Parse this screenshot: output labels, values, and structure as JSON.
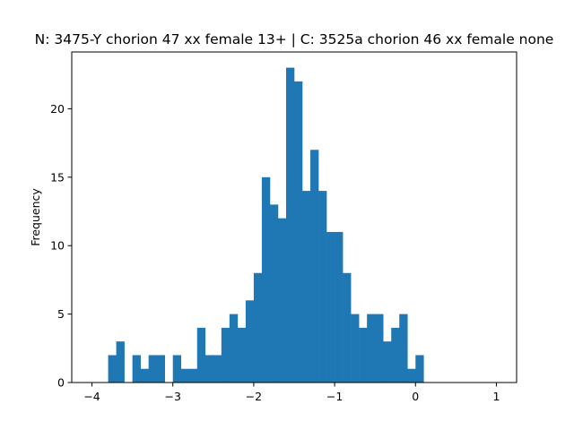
{
  "chart_data": {
    "type": "bar",
    "title": "N: 3475-Y chorion 47 xx female 13+ | C: 3525a chorion 46 xx female none",
    "xlabel": "",
    "ylabel": "Frequency",
    "xlim": [
      -4.25,
      1.25
    ],
    "ylim": [
      0,
      24.15
    ],
    "x_ticks": [
      -4,
      -3,
      -2,
      -1,
      0,
      1
    ],
    "x_tick_labels": [
      "−4",
      "−3",
      "−2",
      "−1",
      "0",
      "1"
    ],
    "y_ticks": [
      0,
      5,
      10,
      15,
      20
    ],
    "y_tick_labels": [
      "0",
      "5",
      "10",
      "15",
      "20"
    ],
    "bin_start": -4.0,
    "bin_width": 0.1,
    "values": [
      0,
      0,
      2,
      3,
      0,
      2,
      1,
      2,
      2,
      0,
      2,
      1,
      1,
      4,
      2,
      2,
      4,
      5,
      4,
      6,
      8,
      15,
      13,
      12,
      23,
      22,
      14,
      17,
      14,
      11,
      11,
      8,
      5,
      4,
      5,
      5,
      3,
      4,
      5,
      1,
      2,
      0,
      0,
      0,
      0,
      0,
      0,
      0,
      0,
      0
    ],
    "bar_color": "#1f77b4",
    "grid": false,
    "legend": "none"
  }
}
